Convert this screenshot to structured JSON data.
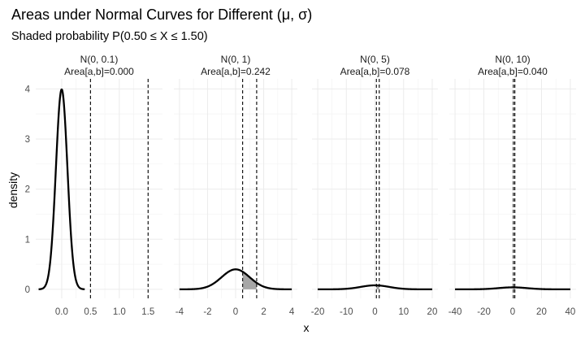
{
  "chart_data": {
    "type": "area",
    "title": "Areas under Normal Curves for Different (μ, σ)",
    "subtitle": "Shaded probability P(0.50 ≤ X ≤ 1.50)",
    "xlabel": "x",
    "ylabel": "density",
    "interval": [
      0.5,
      1.5
    ],
    "y_ticks": [
      0,
      1,
      2,
      3,
      4
    ],
    "y_tick_labels": [
      "0",
      "1",
      "2",
      "3",
      "4"
    ],
    "ylim": [
      -0.18,
      4.2
    ],
    "grid": true,
    "colors": {
      "curve": "#000000",
      "shade": "#a6a6a6",
      "grid": "#ebebeb"
    },
    "panels": [
      {
        "label": "N(0, 0.1)",
        "area_label": "Area[a,b]=0.000",
        "mu": 0,
        "sigma": 0.1,
        "area": 0.0,
        "curve_range": [
          -0.4,
          0.4
        ],
        "xlim": [
          -0.45,
          1.75
        ],
        "x_ticks": [
          0.0,
          0.5,
          1.0,
          1.5
        ],
        "x_tick_labels": [
          "0.0",
          "0.5",
          "1.0",
          "1.5"
        ]
      },
      {
        "label": "N(0, 1)",
        "area_label": "Area[a,b]=0.242",
        "mu": 0,
        "sigma": 1,
        "area": 0.242,
        "curve_range": [
          -4,
          4
        ],
        "xlim": [
          -4.4,
          4.4
        ],
        "x_ticks": [
          -4,
          -2,
          0,
          2,
          4
        ],
        "x_tick_labels": [
          "-4",
          "-2",
          "0",
          "2",
          "4"
        ]
      },
      {
        "label": "N(0, 5)",
        "area_label": "Area[a,b]=0.078",
        "mu": 0,
        "sigma": 5,
        "area": 0.078,
        "curve_range": [
          -20,
          20
        ],
        "xlim": [
          -22,
          22
        ],
        "x_ticks": [
          -20,
          -10,
          0,
          10,
          20
        ],
        "x_tick_labels": [
          "-20",
          "-10",
          "0",
          "10",
          "20"
        ]
      },
      {
        "label": "N(0, 10)",
        "area_label": "Area[a,b]=0.040",
        "mu": 0,
        "sigma": 10,
        "area": 0.04,
        "curve_range": [
          -40,
          40
        ],
        "xlim": [
          -44,
          44
        ],
        "x_ticks": [
          -40,
          -20,
          0,
          20,
          40
        ],
        "x_tick_labels": [
          "-40",
          "-20",
          "0",
          "20",
          "40"
        ]
      }
    ]
  }
}
